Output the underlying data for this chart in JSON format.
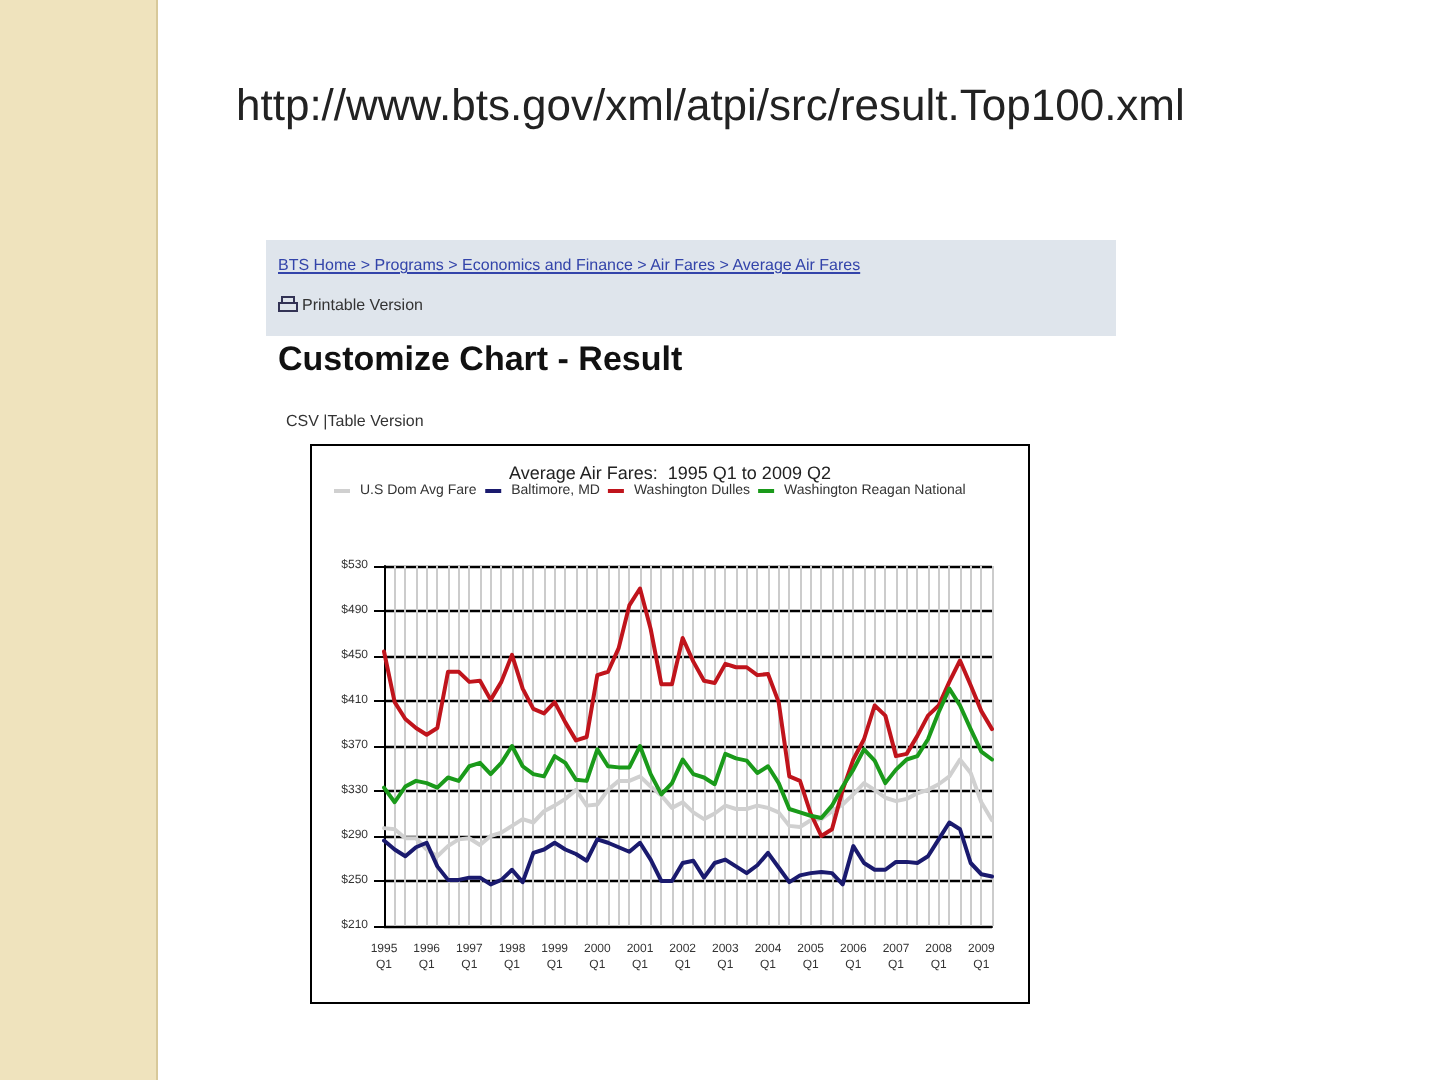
{
  "chart_data": {
    "type": "line",
    "title": "Average Air Fares:  1995 Q1 to 2009 Q2",
    "annotations": [
      "http://www.bts.gov/xml/atpi/src/result.Top100.xml",
      "BTS Home > Programs > Economics and Finance > Air Fares > Average Air Fares",
      "Printable Version",
      "Customize Chart - Result",
      "CSV |Table Version"
    ],
    "categories": [
      "1995\nQ1",
      null,
      null,
      null,
      "1996\nQ1",
      null,
      null,
      null,
      "1997\nQ1",
      null,
      null,
      null,
      "1998\nQ1",
      null,
      null,
      null,
      "1999\nQ1",
      null,
      null,
      null,
      "2000\nQ1",
      null,
      null,
      null,
      "2001\nQ1",
      null,
      null,
      null,
      "2002\nQ1",
      null,
      null,
      null,
      "2003\nQ1",
      null,
      null,
      null,
      "2004\nQ1",
      null,
      null,
      null,
      "2005\nQ1",
      null,
      null,
      null,
      "2006\nQ1",
      null,
      null,
      null,
      "2007\nQ1",
      null,
      null,
      null,
      "2008\nQ1",
      null,
      null,
      null,
      "2009\nQ1",
      null
    ],
    "series": [
      {
        "name": "U.S Dom Avg Fare",
        "color": "#d0d0d0",
        "values": [
          297,
          296,
          288,
          288,
          278,
          272,
          281,
          287,
          288,
          282,
          290,
          293,
          299,
          305,
          302,
          312,
          317,
          323,
          331,
          317,
          318,
          331,
          339,
          339,
          343,
          334,
          326,
          315,
          320,
          311,
          305,
          310,
          317,
          314,
          314,
          317,
          315,
          311,
          299,
          298,
          304,
          305,
          312,
          318,
          327,
          337,
          331,
          324,
          321,
          323,
          328,
          331,
          336,
          343,
          358,
          346,
          320,
          304
        ]
      },
      {
        "name": "Baltimore, MD",
        "color": "#1a1a6e",
        "values": [
          286,
          278,
          272,
          280,
          284,
          263,
          251,
          251,
          253,
          253,
          247,
          251,
          260,
          249,
          275,
          278,
          284,
          278,
          274,
          268,
          287,
          284,
          280,
          276,
          284,
          269,
          250,
          250,
          266,
          268,
          253,
          266,
          269,
          263,
          257,
          264,
          275,
          262,
          249,
          255,
          257,
          258,
          257,
          247,
          281,
          266,
          260,
          260,
          267,
          267,
          266,
          272,
          287,
          302,
          296,
          266,
          256,
          254
        ]
      },
      {
        "name": "Washington Dulles",
        "color": "#c0141c",
        "values": [
          454,
          409,
          394,
          386,
          380,
          386,
          436,
          436,
          427,
          428,
          411,
          427,
          451,
          421,
          403,
          399,
          409,
          391,
          375,
          378,
          433,
          436,
          457,
          495,
          510,
          474,
          425,
          425,
          466,
          445,
          428,
          426,
          443,
          440,
          440,
          433,
          434,
          409,
          343,
          339,
          310,
          290,
          296,
          331,
          358,
          376,
          406,
          397,
          361,
          363,
          379,
          397,
          406,
          427,
          446,
          424,
          401,
          385
        ]
      },
      {
        "name": "Washington Reagan National",
        "color": "#1a9a1a",
        "values": [
          333,
          320,
          334,
          339,
          337,
          333,
          342,
          339,
          352,
          355,
          345,
          355,
          370,
          352,
          345,
          343,
          361,
          355,
          340,
          339,
          367,
          352,
          351,
          351,
          370,
          345,
          327,
          337,
          358,
          345,
          342,
          336,
          363,
          359,
          357,
          346,
          352,
          337,
          314,
          311,
          308,
          306,
          317,
          334,
          349,
          367,
          357,
          337,
          349,
          358,
          361,
          376,
          400,
          421,
          406,
          385,
          365,
          358
        ]
      }
    ],
    "ylim": [
      210,
      530
    ],
    "yticks": [
      {
        "value": 210,
        "label": "$210"
      },
      {
        "value": 250,
        "label": "$250"
      },
      {
        "value": 290,
        "label": "$290"
      },
      {
        "value": 330,
        "label": "$330"
      },
      {
        "value": 370,
        "label": "$370"
      },
      {
        "value": 410,
        "label": "$410"
      },
      {
        "value": 450,
        "label": "$450"
      },
      {
        "value": 490,
        "label": "$490"
      },
      {
        "value": 530,
        "label": "$530"
      }
    ],
    "grid": true,
    "legend": "top",
    "marker": "none",
    "line_style": "solid"
  }
}
